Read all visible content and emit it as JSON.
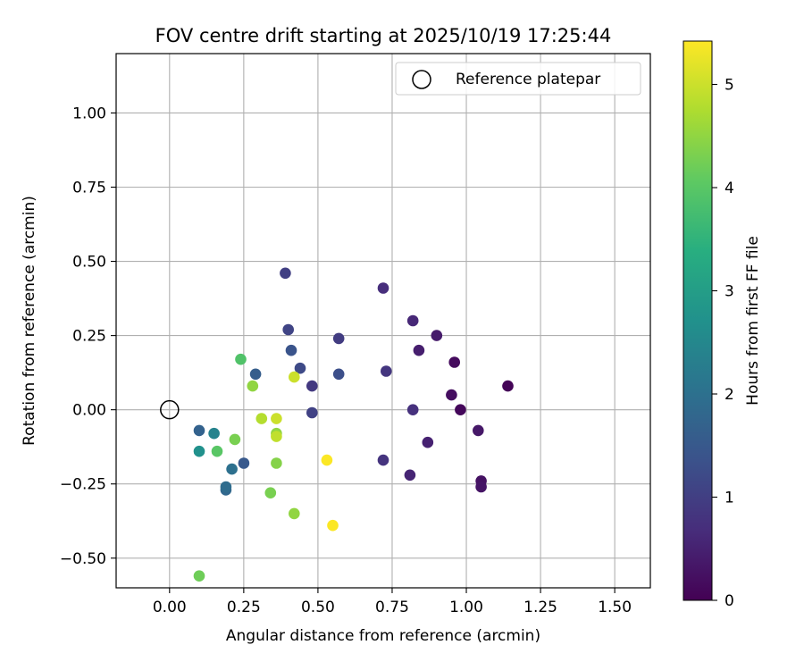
{
  "chart_data": {
    "type": "scatter",
    "title": "FOV centre drift starting at 2025/10/19 17:25:44",
    "xlabel": "Angular distance from reference (arcmin)",
    "ylabel": "Rotation from reference (arcmin)",
    "xlim": [
      -0.18,
      1.62
    ],
    "ylim": [
      -0.6,
      1.2
    ],
    "xticks": [
      0.0,
      0.25,
      0.5,
      0.75,
      1.0,
      1.25,
      1.5
    ],
    "xtick_labels": [
      "0.00",
      "0.25",
      "0.50",
      "0.75",
      "1.00",
      "1.25",
      "1.50"
    ],
    "yticks": [
      -0.5,
      -0.25,
      0.0,
      0.25,
      0.5,
      0.75,
      1.0
    ],
    "ytick_labels": [
      "−0.50",
      "−0.25",
      "0.00",
      "0.25",
      "0.50",
      "0.75",
      "1.00"
    ],
    "grid": true,
    "legend": {
      "label": "Reference platepar",
      "position": "top-right"
    },
    "reference_point": {
      "x": 0.0,
      "y": 0.0
    },
    "colorbar": {
      "label": "Hours from first FF file",
      "range": [
        0,
        5.42
      ],
      "ticks": [
        0,
        1,
        2,
        3,
        4,
        5
      ],
      "tick_labels": [
        "0",
        "1",
        "2",
        "3",
        "4",
        "5"
      ],
      "colormap": "viridis"
    },
    "points": [
      {
        "x": 1.14,
        "y": 0.08,
        "t": 0.05
      },
      {
        "x": 0.98,
        "y": 0.0,
        "t": 0.1
      },
      {
        "x": 0.96,
        "y": 0.16,
        "t": 0.15
      },
      {
        "x": 0.95,
        "y": 0.05,
        "t": 0.2
      },
      {
        "x": 1.05,
        "y": -0.24,
        "t": 0.25
      },
      {
        "x": 1.05,
        "y": -0.26,
        "t": 0.3
      },
      {
        "x": 1.04,
        "y": -0.07,
        "t": 0.35
      },
      {
        "x": 0.9,
        "y": 0.25,
        "t": 0.4
      },
      {
        "x": 0.84,
        "y": 0.2,
        "t": 0.45
      },
      {
        "x": 0.87,
        "y": -0.11,
        "t": 0.5
      },
      {
        "x": 0.81,
        "y": -0.22,
        "t": 0.55
      },
      {
        "x": 0.82,
        "y": 0.3,
        "t": 0.6
      },
      {
        "x": 0.72,
        "y": 0.41,
        "t": 0.7
      },
      {
        "x": 0.82,
        "y": 0.0,
        "t": 0.75
      },
      {
        "x": 0.72,
        "y": -0.17,
        "t": 0.8
      },
      {
        "x": 0.73,
        "y": 0.13,
        "t": 0.85
      },
      {
        "x": 0.48,
        "y": 0.08,
        "t": 0.9
      },
      {
        "x": 0.57,
        "y": 0.24,
        "t": 0.95
      },
      {
        "x": 0.39,
        "y": 0.46,
        "t": 1.0
      },
      {
        "x": 0.48,
        "y": -0.01,
        "t": 1.05
      },
      {
        "x": 0.4,
        "y": 0.27,
        "t": 1.1
      },
      {
        "x": 0.44,
        "y": 0.14,
        "t": 1.2
      },
      {
        "x": 0.57,
        "y": 0.12,
        "t": 1.3
      },
      {
        "x": 0.41,
        "y": 0.2,
        "t": 1.4
      },
      {
        "x": 0.25,
        "y": -0.18,
        "t": 1.5
      },
      {
        "x": 0.29,
        "y": 0.12,
        "t": 1.6
      },
      {
        "x": 0.1,
        "y": -0.07,
        "t": 1.7
      },
      {
        "x": 0.19,
        "y": -0.27,
        "t": 1.8
      },
      {
        "x": 0.19,
        "y": -0.26,
        "t": 1.9
      },
      {
        "x": 0.21,
        "y": -0.2,
        "t": 2.0
      },
      {
        "x": 0.15,
        "y": -0.08,
        "t": 2.4
      },
      {
        "x": 0.1,
        "y": -0.14,
        "t": 2.7
      },
      {
        "x": 0.24,
        "y": 0.17,
        "t": 3.9
      },
      {
        "x": 0.16,
        "y": -0.14,
        "t": 4.0
      },
      {
        "x": 0.1,
        "y": -0.56,
        "t": 4.2
      },
      {
        "x": 0.22,
        "y": -0.1,
        "t": 4.3
      },
      {
        "x": 0.34,
        "y": -0.28,
        "t": 4.3
      },
      {
        "x": 0.36,
        "y": -0.18,
        "t": 4.4
      },
      {
        "x": 0.36,
        "y": -0.08,
        "t": 4.5
      },
      {
        "x": 0.28,
        "y": 0.08,
        "t": 4.5
      },
      {
        "x": 0.42,
        "y": -0.35,
        "t": 4.5
      },
      {
        "x": 0.31,
        "y": -0.03,
        "t": 4.8
      },
      {
        "x": 0.36,
        "y": -0.09,
        "t": 4.9
      },
      {
        "x": 0.42,
        "y": 0.11,
        "t": 5.0
      },
      {
        "x": 0.36,
        "y": -0.03,
        "t": 5.0
      },
      {
        "x": 0.53,
        "y": -0.17,
        "t": 5.4
      },
      {
        "x": 0.55,
        "y": -0.39,
        "t": 5.4
      }
    ]
  }
}
